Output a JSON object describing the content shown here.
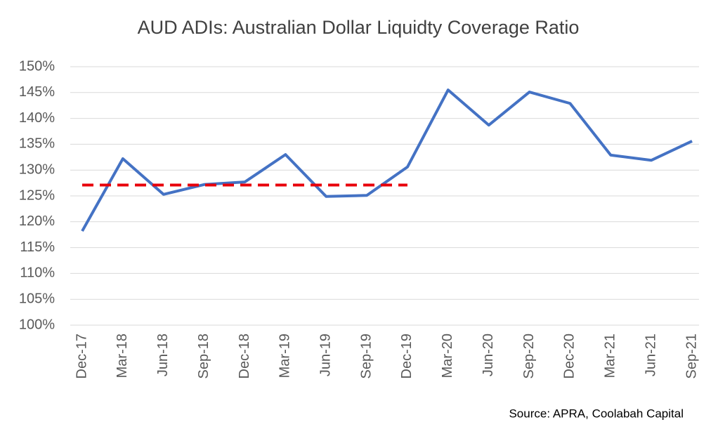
{
  "chart_data": {
    "type": "line",
    "title": "AUD ADIs: Australian Dollar Liquidty Coverage Ratio",
    "annotation": "Source: APRA, Coolabah Capital",
    "categories": [
      "Dec-17",
      "Mar-18",
      "Jun-18",
      "Sep-18",
      "Dec-18",
      "Mar-19",
      "Jun-19",
      "Sep-19",
      "Dec-19",
      "Mar-20",
      "Jun-20",
      "Sep-20",
      "Dec-20",
      "Mar-21",
      "Jun-21",
      "Sep-21"
    ],
    "series": [
      {
        "color": "#4472c4",
        "dash": false,
        "values": [
          118.2,
          132.2,
          125.3,
          127.2,
          127.7,
          133.0,
          124.9,
          125.1,
          130.6,
          145.5,
          138.7,
          145.1,
          142.9,
          132.9,
          131.9,
          135.6
        ]
      },
      {
        "color": "#e8000b",
        "dash": true,
        "values": [
          127.1,
          127.1,
          127.1,
          127.1,
          127.1,
          127.1,
          127.1,
          127.1,
          127.1,
          null,
          null,
          null,
          null,
          null,
          null,
          null
        ]
      }
    ],
    "ylim": [
      100,
      150
    ],
    "yticks": [
      {
        "value": 100,
        "label": "100%"
      },
      {
        "value": 105,
        "label": "105%"
      },
      {
        "value": 110,
        "label": "110%"
      },
      {
        "value": 115,
        "label": "115%"
      },
      {
        "value": 120,
        "label": "120%"
      },
      {
        "value": 125,
        "label": "125%"
      },
      {
        "value": 130,
        "label": "130%"
      },
      {
        "value": 135,
        "label": "135%"
      },
      {
        "value": 140,
        "label": "140%"
      },
      {
        "value": 145,
        "label": "145%"
      },
      {
        "value": 150,
        "label": "150%"
      }
    ],
    "grid": true
  }
}
